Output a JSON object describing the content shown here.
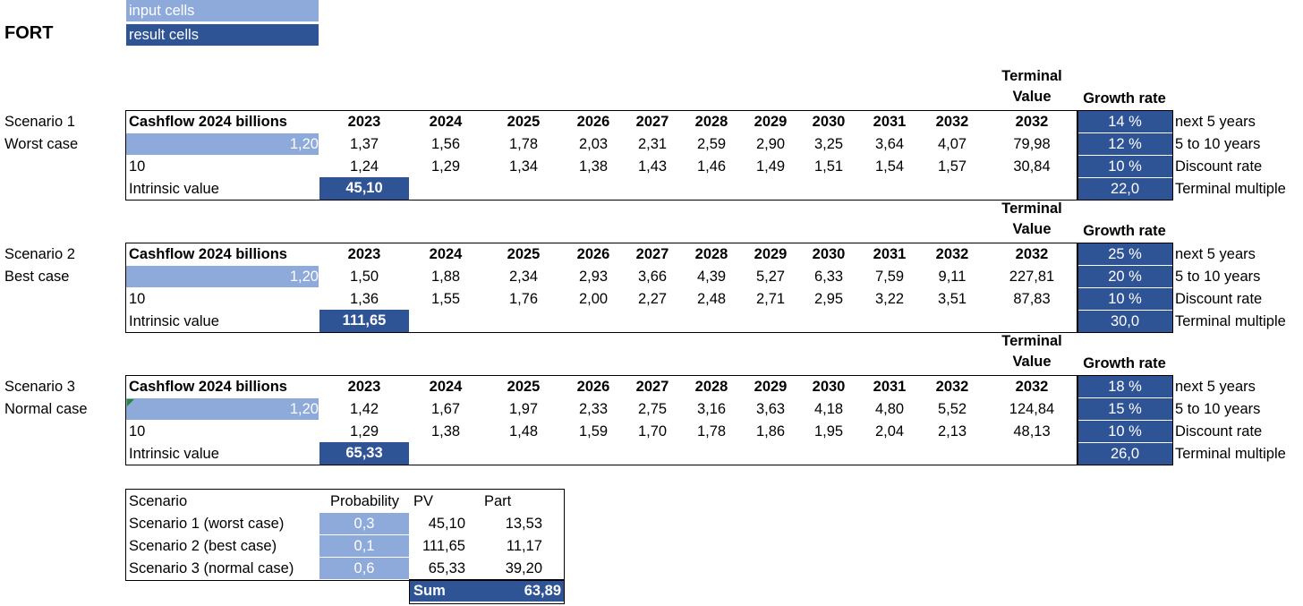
{
  "title": "FORT",
  "legend": {
    "input": "input cells",
    "result": "result cells"
  },
  "colors": {
    "input": "#8eaadb",
    "result": "#2f5496"
  },
  "scenarios": [
    {
      "name": "Scenario 1",
      "case": "Worst case",
      "header_label": "Cashflow 2024 billions",
      "years": [
        "2023",
        "2024",
        "2025",
        "2026",
        "2027",
        "2028",
        "2029",
        "2030",
        "2031",
        "2032"
      ],
      "tv_header_1": "Terminal",
      "tv_header_2": "Value",
      "tv_year": "2032",
      "growth_header": "Growth rate",
      "cashflow_input": "1,20",
      "projected": [
        "1,37",
        "1,56",
        "1,78",
        "2,03",
        "2,31",
        "2,59",
        "2,90",
        "3,25",
        "3,64",
        "4,07"
      ],
      "tv_projected": "79,98",
      "years_label": "10",
      "discounted": [
        "1,24",
        "1,29",
        "1,34",
        "1,38",
        "1,43",
        "1,46",
        "1,49",
        "1,51",
        "1,54",
        "1,57"
      ],
      "tv_discounted": "30,84",
      "intrinsic_label": "Intrinsic value",
      "intrinsic_value": "45,10",
      "params": [
        {
          "value": "14 %",
          "label": "next 5 years"
        },
        {
          "value": "12 %",
          "label": "5 to 10 years"
        },
        {
          "value": "10 %",
          "label": "Discount rate"
        },
        {
          "value": "22,0",
          "label": "Terminal multiple"
        }
      ]
    },
    {
      "name": "Scenario 2",
      "case": "Best case",
      "header_label": "Cashflow 2024 billions",
      "years": [
        "2023",
        "2024",
        "2025",
        "2026",
        "2027",
        "2028",
        "2029",
        "2030",
        "2031",
        "2032"
      ],
      "tv_header_1": "Terminal",
      "tv_header_2": "Value",
      "tv_year": "2032",
      "growth_header": "Growth rate",
      "cashflow_input": "1,20",
      "projected": [
        "1,50",
        "1,88",
        "2,34",
        "2,93",
        "3,66",
        "4,39",
        "5,27",
        "6,33",
        "7,59",
        "9,11"
      ],
      "tv_projected": "227,81",
      "years_label": "10",
      "discounted": [
        "1,36",
        "1,55",
        "1,76",
        "2,00",
        "2,27",
        "2,48",
        "2,71",
        "2,95",
        "3,22",
        "3,51"
      ],
      "tv_discounted": "87,83",
      "intrinsic_label": "Intrinsic value",
      "intrinsic_value": "111,65",
      "params": [
        {
          "value": "25 %",
          "label": "next 5 years"
        },
        {
          "value": "20 %",
          "label": "5 to 10 years"
        },
        {
          "value": "10 %",
          "label": "Discount rate"
        },
        {
          "value": "30,0",
          "label": "Terminal multiple"
        }
      ]
    },
    {
      "name": "Scenario 3",
      "case": "Normal case",
      "header_label": "Cashflow 2024 billions",
      "years": [
        "2023",
        "2024",
        "2025",
        "2026",
        "2027",
        "2028",
        "2029",
        "2030",
        "2031",
        "2032"
      ],
      "tv_header_1": "Terminal",
      "tv_header_2": "Value",
      "tv_year": "2032",
      "growth_header": "Growth rate",
      "cashflow_input": "1,20",
      "projected": [
        "1,42",
        "1,67",
        "1,97",
        "2,33",
        "2,75",
        "3,16",
        "3,63",
        "4,18",
        "4,80",
        "5,52"
      ],
      "tv_projected": "124,84",
      "years_label": "10",
      "discounted": [
        "1,29",
        "1,38",
        "1,48",
        "1,59",
        "1,70",
        "1,78",
        "1,86",
        "1,95",
        "2,04",
        "2,13"
      ],
      "tv_discounted": "48,13",
      "intrinsic_label": "Intrinsic value",
      "intrinsic_value": "65,33",
      "params": [
        {
          "value": "18 %",
          "label": "next 5 years"
        },
        {
          "value": "15 %",
          "label": "5 to 10 years"
        },
        {
          "value": "10 %",
          "label": "Discount rate"
        },
        {
          "value": "26,0",
          "label": "Terminal multiple"
        }
      ]
    }
  ],
  "summary": {
    "headers": [
      "Scenario",
      "Probability",
      "PV",
      "Part"
    ],
    "rows": [
      {
        "scenario": "Scenario 1 (worst case)",
        "probability": "0,3",
        "pv": "45,10",
        "part": "13,53"
      },
      {
        "scenario": "Scenario 2 (best case)",
        "probability": "0,1",
        "pv": "111,65",
        "part": "11,17"
      },
      {
        "scenario": "Scenario 3 (normal case)",
        "probability": "0,6",
        "pv": "65,33",
        "part": "39,20"
      }
    ],
    "sum_label": "Sum",
    "sum_value": "63,89"
  }
}
